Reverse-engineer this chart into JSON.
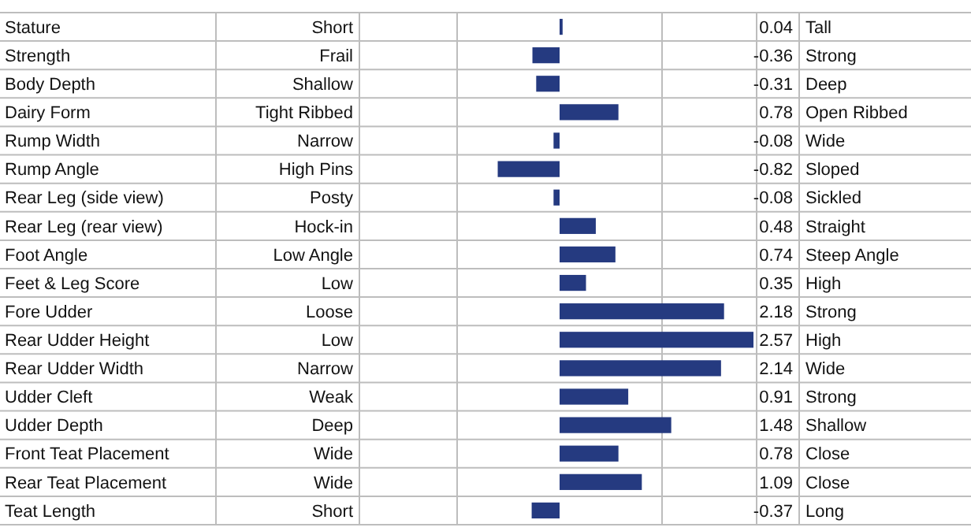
{
  "chart_data": {
    "type": "bar",
    "orientation": "horizontal",
    "data_labels": true,
    "grid": true,
    "color": "#253a80",
    "categories": [
      "Stature",
      "Strength",
      "Body Depth",
      "Dairy Form",
      "Rump Width",
      "Rump Angle",
      "Rear Leg (side view)",
      "Rear Leg (rear view)",
      "Foot Angle",
      "Feet & Leg Score",
      "Fore Udder",
      "Rear Udder Height",
      "Rear Udder Width",
      "Udder Cleft",
      "Udder Depth",
      "Front Teat Placement",
      "Rear Teat Placement",
      "Teat Length"
    ],
    "values": [
      0.04,
      -0.36,
      -0.31,
      0.78,
      -0.08,
      -0.82,
      -0.08,
      0.48,
      0.74,
      0.35,
      2.18,
      2.57,
      2.14,
      0.91,
      1.48,
      0.78,
      1.09,
      -0.37
    ],
    "annotations": [
      "Short",
      "Tall",
      "Frail",
      "Strong",
      "Shallow",
      "Deep",
      "Tight Ribbed",
      "Open Ribbed",
      "Narrow",
      "Wide",
      "High Pins",
      "Sloped",
      "Posty",
      "Sickled",
      "Hock-in",
      "Straight",
      "Low Angle",
      "Steep Angle",
      "Low",
      "High",
      "Loose",
      "Strong",
      "Low",
      "High",
      "Narrow",
      "Wide",
      "Weak",
      "Strong",
      "Deep",
      "Shallow",
      "Wide",
      "Close",
      "Wide",
      "Close",
      "Short",
      "Long"
    ]
  }
}
